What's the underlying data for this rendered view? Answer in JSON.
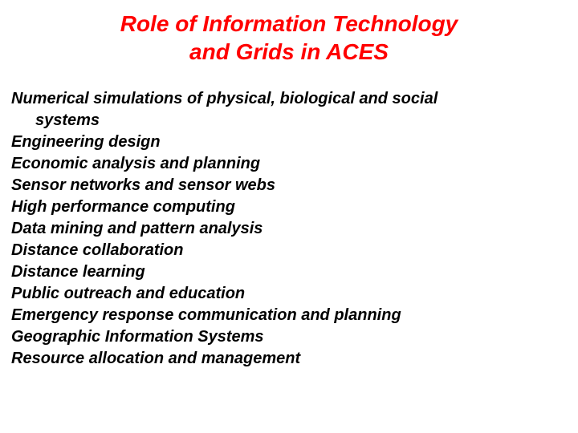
{
  "slide": {
    "title_line1": "Role of Information Technology",
    "title_line2": "and Grids in ACES",
    "title_color": "#ff0000",
    "title_fontsize": 28,
    "body_color": "#000000",
    "body_fontsize": 20,
    "background_color": "#ffffff",
    "font_family": "Comic Sans MS",
    "items": [
      {
        "text": "Numerical simulations of physical, biological and social",
        "indent": false
      },
      {
        "text": "systems",
        "indent": true
      },
      {
        "text": "Engineering design",
        "indent": false
      },
      {
        "text": "Economic analysis and planning",
        "indent": false
      },
      {
        "text": "Sensor networks and sensor webs",
        "indent": false
      },
      {
        "text": "High performance computing",
        "indent": false
      },
      {
        "text": "Data mining and pattern analysis",
        "indent": false
      },
      {
        "text": "Distance collaboration",
        "indent": false
      },
      {
        "text": "Distance learning",
        "indent": false
      },
      {
        "text": "Public outreach and education",
        "indent": false
      },
      {
        "text": "Emergency response communication and planning",
        "indent": false
      },
      {
        "text": "Geographic Information Systems",
        "indent": false
      },
      {
        "text": "Resource allocation and management",
        "indent": false
      }
    ]
  }
}
